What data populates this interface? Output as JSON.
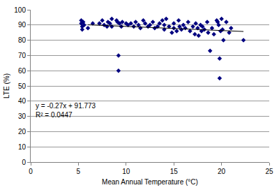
{
  "chart_data": {
    "type": "scatter",
    "x_label": "Mean Annual Temperature (°C)",
    "y_label": "LTE (%)",
    "xlim": [
      0,
      25
    ],
    "xticks": [
      0,
      5,
      10,
      15,
      20,
      25
    ],
    "ylim": [
      0,
      100
    ],
    "yticks": [
      0,
      10,
      20,
      30,
      40,
      50,
      60,
      70,
      80,
      90,
      100
    ],
    "grid": "y",
    "annotations": [
      "y = -0.27x + 91.773",
      "R² = 0.0447"
    ],
    "series": [
      {
        "type": "scatter",
        "marker": "diamond",
        "color": "#000080",
        "x": [
          5.3,
          5.3,
          5.4,
          5.4,
          5.5,
          5.6,
          6.0,
          6.5,
          7.2,
          7.5,
          7.7,
          8.0,
          8.1,
          8.3,
          8.5,
          8.5,
          9.0,
          9.1,
          9.2,
          9.2,
          9.3,
          9.5,
          9.6,
          10.0,
          10.2,
          10.5,
          10.8,
          11.0,
          11.3,
          11.5,
          11.8,
          12.0,
          12.3,
          12.5,
          12.8,
          13.0,
          13.3,
          13.5,
          13.8,
          14.0,
          14.0,
          14.2,
          14.5,
          14.8,
          15.0,
          15.0,
          15.3,
          15.5,
          15.6,
          15.8,
          16.0,
          16.2,
          16.5,
          16.7,
          17.0,
          17.2,
          17.3,
          17.5,
          17.6,
          17.8,
          17.9,
          18.0,
          18.2,
          18.5,
          18.6,
          18.8,
          19.0,
          19.2,
          19.5,
          19.6,
          19.7,
          19.8,
          19.8,
          19.9,
          20.0,
          20.1,
          20.2,
          20.5,
          20.8,
          21.0,
          22.3
        ],
        "values": [
          93,
          91,
          89,
          87,
          92,
          90,
          88,
          91,
          91,
          93,
          90,
          89,
          92,
          91,
          94,
          89,
          93,
          92,
          70,
          60,
          91,
          89,
          92,
          91,
          90,
          91,
          89,
          92,
          90,
          88,
          93,
          91,
          89,
          90,
          92,
          88,
          89,
          91,
          93,
          90,
          87,
          94,
          89,
          85,
          88,
          91,
          86,
          93,
          89,
          87,
          90,
          88,
          92,
          86,
          89,
          84,
          91,
          88,
          83,
          90,
          86,
          89,
          87,
          92,
          85,
          73,
          88,
          84,
          93,
          92,
          90,
          68,
          55,
          86,
          94,
          87,
          80,
          92,
          85,
          88,
          80
        ]
      },
      {
        "type": "line",
        "line_style": "solid",
        "color": "#000000",
        "x": [
          6.0,
          22.3
        ],
        "values": [
          90.15,
          85.75
        ]
      }
    ]
  }
}
